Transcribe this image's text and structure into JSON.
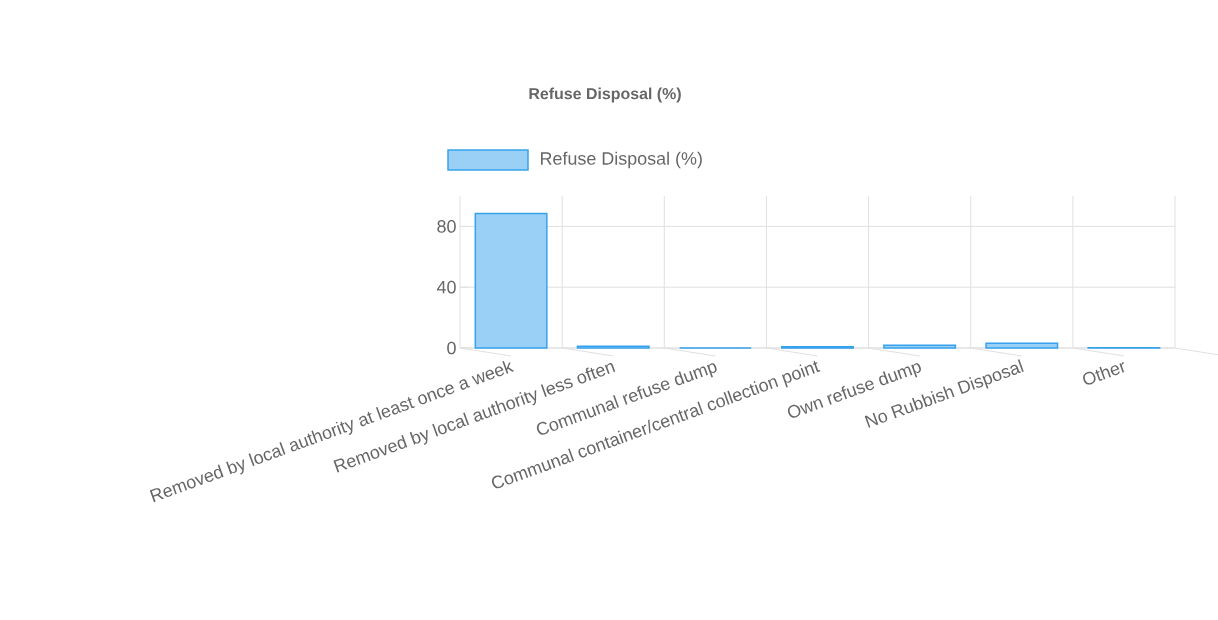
{
  "chart_data": {
    "type": "bar",
    "title": "Refuse Disposal (%)",
    "categories": [
      "Removed by local authority at least once a week",
      "Removed by local authority less often",
      "Communal refuse dump",
      "Communal container/central collection point",
      "Own refuse dump",
      "No Rubbish Disposal",
      "Other"
    ],
    "series": [
      {
        "name": "Refuse Disposal (%)",
        "color": "#36a2eb",
        "values": [
          88.5,
          1.2,
          0,
          0.8,
          1.8,
          3.2,
          0.2
        ]
      }
    ],
    "ylim": [
      0,
      100
    ],
    "yticks": [
      0,
      40,
      80
    ],
    "grid": true,
    "legend": "top"
  }
}
